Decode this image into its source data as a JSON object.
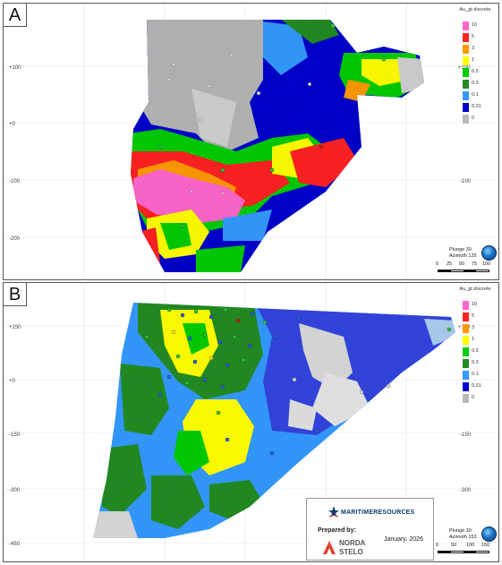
{
  "figure": {
    "panels": [
      {
        "label": "A",
        "y_ticks_left": [
          "+100",
          "+0",
          "-100",
          "-200"
        ],
        "y_ticks_right": [
          "+100",
          "-100"
        ],
        "legend": {
          "title": "Au_gt discrete",
          "entries": [
            {
              "value": "10",
              "color": "#ff66cc"
            },
            {
              "value": "5",
              "color": "#ff2222"
            },
            {
              "value": "3",
              "color": "#ff9900"
            },
            {
              "value": "1",
              "color": "#ffff00"
            },
            {
              "value": "0.5",
              "color": "#00cc00"
            },
            {
              "value": "0.3",
              "color": "#228b22"
            },
            {
              "value": "0.1",
              "color": "#3399ff"
            },
            {
              "value": "0.01",
              "color": "#0000cc"
            },
            {
              "value": "0",
              "color": "#bbbbbb"
            }
          ]
        },
        "orientation": {
          "plunge": "Plunge 30",
          "azimuth": "Azimuth 125"
        },
        "scale_labels": [
          "0",
          "25",
          "50",
          "75",
          "100"
        ]
      },
      {
        "label": "B",
        "y_ticks_left": [
          "+150",
          "+0",
          "-150",
          "-300",
          "-450"
        ],
        "y_ticks_right": [
          "+150",
          "-150",
          "-300"
        ],
        "legend": {
          "title": "Au_gt discrete",
          "entries": [
            {
              "value": "10",
              "color": "#ff66cc"
            },
            {
              "value": "5",
              "color": "#ff2222"
            },
            {
              "value": "3",
              "color": "#ff9900"
            },
            {
              "value": "1",
              "color": "#ffff00"
            },
            {
              "value": "0.5",
              "color": "#00cc00"
            },
            {
              "value": "0.3",
              "color": "#228b22"
            },
            {
              "value": "0.1",
              "color": "#3399ff"
            },
            {
              "value": "0.01",
              "color": "#0000cc"
            },
            {
              "value": "0",
              "color": "#bbbbbb"
            }
          ]
        },
        "orientation": {
          "plunge": "Plunge 30",
          "azimuth": "Azimuth 153"
        },
        "scale_labels": [
          "0",
          "50",
          "100",
          "150"
        ]
      }
    ],
    "credits": {
      "company": "MARITIMERESOURCES",
      "prepared_by": "Prepared by:",
      "date": "January, 2026",
      "consultant_line1": "NORDA",
      "consultant_line2": "STELO"
    }
  }
}
